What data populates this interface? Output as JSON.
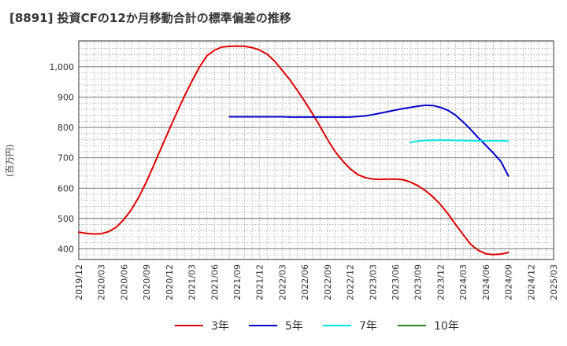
{
  "title": "[8891]  投資CFの12か月移動合計の標準偏差の推移",
  "ylabel": "(百万円)",
  "chart_data": {
    "type": "line",
    "title": "[8891]  投資CFの12か月移動合計の標準偏差の推移",
    "xlabel": "",
    "ylabel": "(百万円)",
    "ylim": [
      365,
      1085
    ],
    "yticks": [
      400,
      500,
      600,
      700,
      800,
      900,
      1000
    ],
    "ytick_labels": [
      "400",
      "500",
      "600",
      "700",
      "800",
      "900",
      "1,000"
    ],
    "xlim": [
      "2019/12",
      "2025/03"
    ],
    "xtick_labels": [
      "2019/12",
      "2020/03",
      "2020/06",
      "2020/09",
      "2020/12",
      "2021/03",
      "2021/06",
      "2021/09",
      "2021/12",
      "2022/03",
      "2022/06",
      "2022/09",
      "2022/12",
      "2023/03",
      "2023/06",
      "2023/09",
      "2023/12",
      "2024/03",
      "2024/06",
      "2024/09",
      "2024/12",
      "2025/03"
    ],
    "grid": true,
    "legend_position": "bottom",
    "series": [
      {
        "name": "3年",
        "color": "#e00000",
        "x": [
          "2019/12",
          "2020/01",
          "2020/02",
          "2020/03",
          "2020/04",
          "2020/05",
          "2020/06",
          "2020/07",
          "2020/08",
          "2020/09",
          "2020/10",
          "2020/11",
          "2020/12",
          "2021/01",
          "2021/02",
          "2021/03",
          "2021/04",
          "2021/05",
          "2021/06",
          "2021/07",
          "2021/08",
          "2021/09",
          "2021/10",
          "2021/11",
          "2021/12",
          "2022/01",
          "2022/02",
          "2022/03",
          "2022/04",
          "2022/05",
          "2022/06",
          "2022/07",
          "2022/08",
          "2022/09",
          "2022/10",
          "2022/11",
          "2022/12",
          "2023/01",
          "2023/02",
          "2023/03",
          "2023/04",
          "2023/05",
          "2023/06",
          "2023/07",
          "2023/08",
          "2023/09",
          "2023/10",
          "2023/11",
          "2023/12",
          "2024/01",
          "2024/02",
          "2024/03",
          "2024/04",
          "2024/05",
          "2024/06",
          "2024/07",
          "2024/08",
          "2024/09"
        ],
        "values": [
          455,
          451,
          449,
          450,
          457,
          472,
          497,
          530,
          572,
          622,
          678,
          736,
          793,
          848,
          902,
          952,
          998,
          1036,
          1054,
          1065,
          1067,
          1068,
          1067,
          1063,
          1055,
          1041,
          1018,
          988,
          957,
          922,
          885,
          846,
          804,
          760,
          721,
          690,
          664,
          645,
          635,
          630,
          629,
          630,
          630,
          628,
          620,
          608,
          592,
          571,
          546,
          515,
          480,
          447,
          415,
          395,
          384,
          381,
          383,
          388
        ]
      },
      {
        "name": "5年",
        "color": "#0000cc",
        "x": [
          "2021/08",
          "2021/09",
          "2021/10",
          "2021/11",
          "2021/12",
          "2022/01",
          "2022/02",
          "2022/03",
          "2022/04",
          "2022/05",
          "2022/06",
          "2022/07",
          "2022/08",
          "2022/09",
          "2022/10",
          "2022/11",
          "2022/12",
          "2023/01",
          "2023/02",
          "2023/03",
          "2023/04",
          "2023/05",
          "2023/06",
          "2023/07",
          "2023/08",
          "2023/09",
          "2023/10",
          "2023/11",
          "2023/12",
          "2024/01",
          "2024/02",
          "2024/03",
          "2024/04",
          "2024/05",
          "2024/06",
          "2024/07",
          "2024/08",
          "2024/09"
        ],
        "values": [
          835,
          835,
          835,
          835,
          835,
          835,
          835,
          835,
          834,
          834,
          834,
          834,
          834,
          834,
          834,
          834,
          834,
          836,
          838,
          842,
          847,
          852,
          857,
          862,
          866,
          870,
          873,
          872,
          866,
          856,
          840,
          818,
          793,
          766,
          741,
          716,
          688,
          640
        ]
      },
      {
        "name": "7年",
        "color": "#00e5e5",
        "x": [
          "2023/08",
          "2023/09",
          "2023/10",
          "2023/11",
          "2023/12",
          "2024/01",
          "2024/02",
          "2024/03",
          "2024/04",
          "2024/05",
          "2024/06",
          "2024/07",
          "2024/08",
          "2024/09"
        ],
        "values": [
          750,
          755,
          757,
          758,
          758,
          758,
          757,
          757,
          756,
          756,
          756,
          756,
          756,
          755
        ]
      },
      {
        "name": "10年",
        "color": "#228b22",
        "x": [],
        "values": []
      }
    ]
  }
}
